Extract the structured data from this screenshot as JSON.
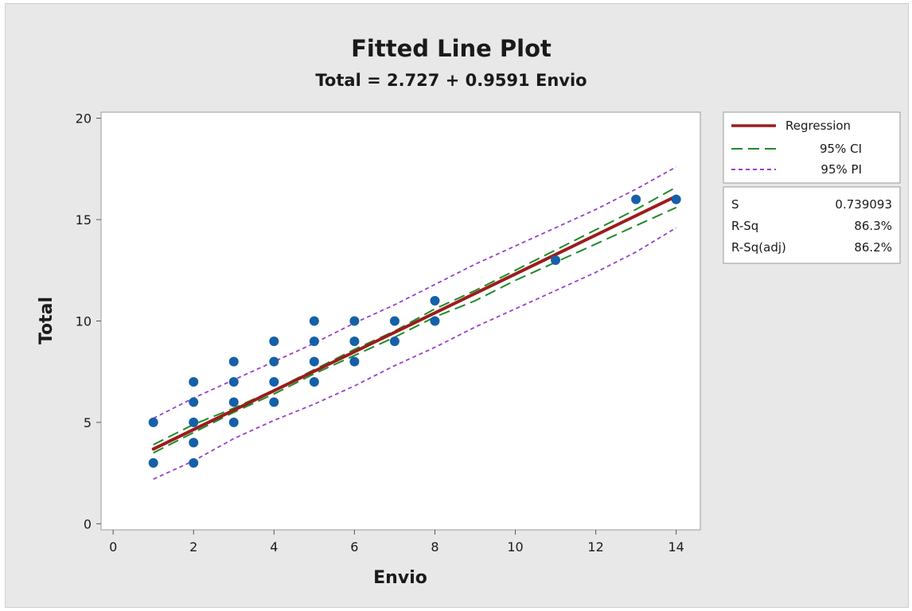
{
  "chart_data": {
    "type": "scatter",
    "title": "Fitted Line Plot",
    "subtitle": "Total = 2.727 + 0.9591 Envio",
    "xlabel": "Envio",
    "ylabel": "Total",
    "xlim": [
      -0.3,
      14.6
    ],
    "ylim": [
      -0.3,
      20.3
    ],
    "x_ticks": [
      0,
      2,
      4,
      6,
      8,
      10,
      12,
      14
    ],
    "y_ticks": [
      0,
      5,
      10,
      15,
      20
    ],
    "points": [
      [
        1,
        3
      ],
      [
        1,
        5
      ],
      [
        2,
        3
      ],
      [
        2,
        4
      ],
      [
        2,
        5
      ],
      [
        2,
        6
      ],
      [
        2,
        7
      ],
      [
        3,
        5
      ],
      [
        3,
        6
      ],
      [
        3,
        7
      ],
      [
        3,
        8
      ],
      [
        4,
        6
      ],
      [
        4,
        7
      ],
      [
        4,
        8
      ],
      [
        4,
        9
      ],
      [
        5,
        7
      ],
      [
        5,
        8
      ],
      [
        5,
        9
      ],
      [
        5,
        10
      ],
      [
        6,
        8
      ],
      [
        6,
        9
      ],
      [
        6,
        10
      ],
      [
        7,
        9
      ],
      [
        7,
        10
      ],
      [
        8,
        10
      ],
      [
        8,
        11
      ],
      [
        11,
        13
      ],
      [
        13,
        16
      ],
      [
        14,
        16
      ]
    ],
    "regression": {
      "intercept": 2.727,
      "slope": 0.9591,
      "x_range": [
        1,
        14
      ]
    },
    "ci": {
      "x": [
        1,
        2,
        3,
        4,
        5,
        6,
        7,
        8,
        9,
        10,
        11,
        12,
        13,
        14
      ],
      "lower": [
        3.5,
        4.5,
        5.5,
        6.4,
        7.4,
        8.3,
        9.2,
        10.2,
        11.0,
        12.0,
        12.9,
        13.8,
        14.7,
        15.6
      ],
      "upper": [
        3.9,
        4.9,
        5.7,
        6.6,
        7.6,
        8.6,
        9.5,
        10.6,
        11.5,
        12.5,
        13.5,
        14.5,
        15.5,
        16.6
      ]
    },
    "pi": {
      "x": [
        1,
        2,
        3,
        4,
        5,
        6,
        7,
        8,
        9,
        10,
        11,
        12,
        13,
        14
      ],
      "lower": [
        2.2,
        3.1,
        4.2,
        5.1,
        5.9,
        6.8,
        7.8,
        8.7,
        9.7,
        10.6,
        11.5,
        12.4,
        13.4,
        14.6
      ],
      "upper": [
        5.2,
        6.2,
        7.1,
        8.0,
        8.9,
        9.9,
        10.8,
        11.8,
        12.8,
        13.7,
        14.6,
        15.5,
        16.5,
        17.6
      ]
    },
    "legend": {
      "position": "right",
      "entries": [
        {
          "label": "Regression",
          "color": "#9b1c1c",
          "style": "solid"
        },
        {
          "label": "95% CI",
          "color": "#1f8a2a",
          "style": "long-dash"
        },
        {
          "label": "95% PI",
          "color": "#9b3fc8",
          "style": "short-dash"
        }
      ]
    },
    "stats": [
      {
        "label": "S",
        "value": "0.739093"
      },
      {
        "label": "R-Sq",
        "value": "86.3%"
      },
      {
        "label": "R-Sq(adj)",
        "value": "86.2%"
      }
    ],
    "point_color": "#1560a8",
    "grid": false
  }
}
